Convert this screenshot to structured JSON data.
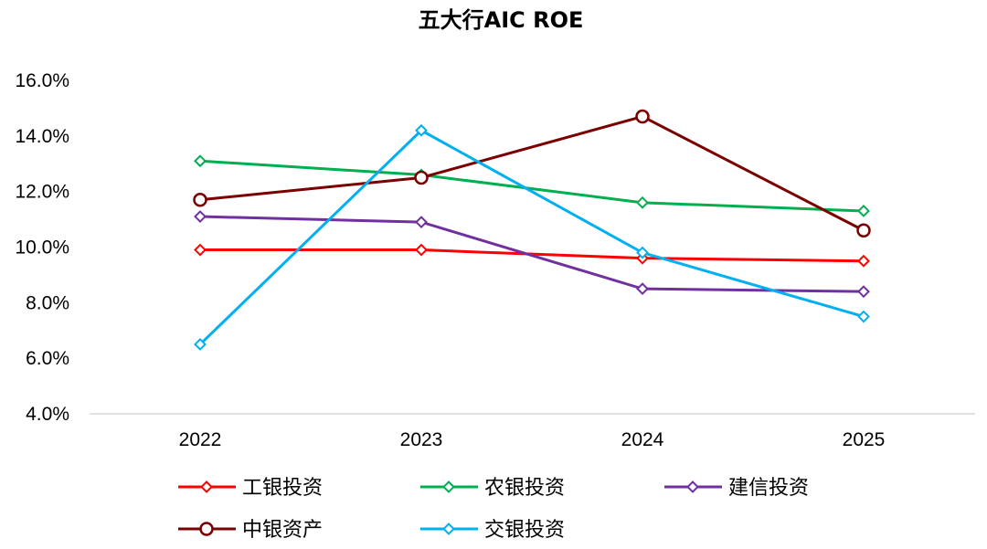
{
  "chart_data": {
    "type": "line",
    "title": "五大行AIC ROE",
    "xlabel": "",
    "ylabel": "",
    "categories": [
      "2022",
      "2023",
      "2024",
      "2025"
    ],
    "ylim": [
      4.0,
      16.0
    ],
    "yticks": [
      4.0,
      6.0,
      8.0,
      10.0,
      12.0,
      14.0,
      16.0
    ],
    "ytick_labels": [
      "4.0%",
      "6.0%",
      "8.0%",
      "10.0%",
      "12.0%",
      "14.0%",
      "16.0%"
    ],
    "grid": false,
    "legend_position": "bottom",
    "series": [
      {
        "name": "工银投资",
        "color": "#ff0000",
        "marker": "diamond",
        "values": [
          9.9,
          9.9,
          9.6,
          9.5
        ]
      },
      {
        "name": "农银投资",
        "color": "#00b050",
        "marker": "diamond",
        "values": [
          13.1,
          12.6,
          11.6,
          11.3
        ]
      },
      {
        "name": "建信投资",
        "color": "#7030a0",
        "marker": "diamond",
        "values": [
          11.1,
          10.9,
          8.5,
          8.4
        ]
      },
      {
        "name": "中银资产",
        "color": "#7b0000",
        "marker": "circle",
        "values": [
          11.7,
          12.5,
          14.7,
          10.6
        ]
      },
      {
        "name": "交银投资",
        "color": "#00b0f0",
        "marker": "diamond",
        "values": [
          6.5,
          14.2,
          9.8,
          7.5
        ]
      }
    ]
  }
}
